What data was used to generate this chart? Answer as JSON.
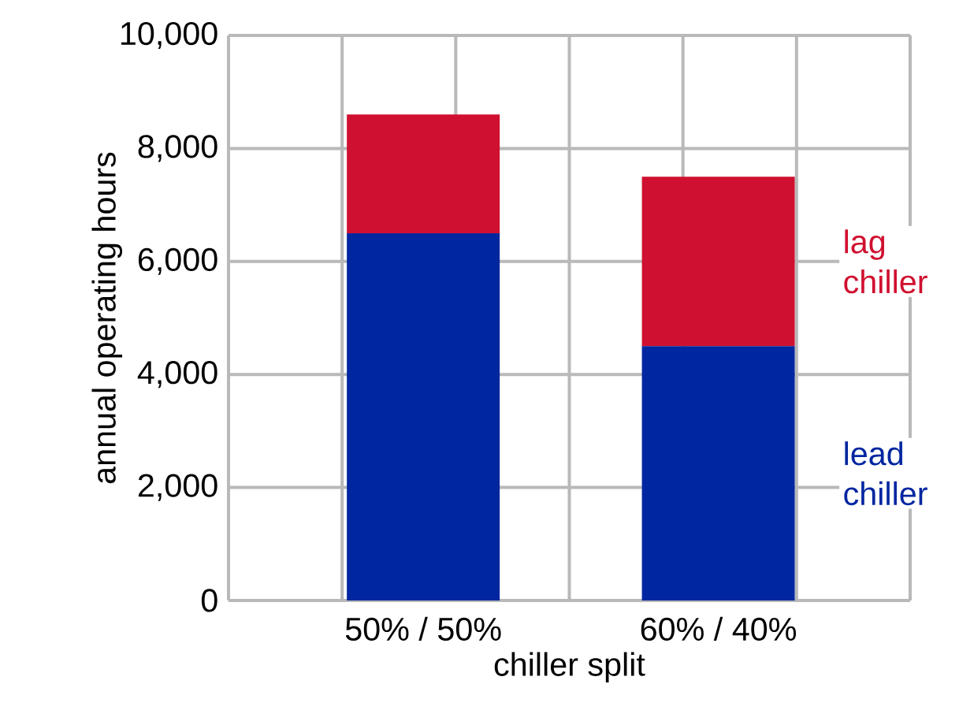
{
  "chart_data": {
    "type": "bar",
    "stacked": true,
    "xlabel": "chiller split",
    "ylabel": "annual operating hours",
    "categories": [
      "50% / 50%",
      "60% / 40%"
    ],
    "series": [
      {
        "name": "lead chiller",
        "color": "#0026a0",
        "values": [
          6500,
          4500
        ]
      },
      {
        "name": "lag chiller",
        "color": "#d01030",
        "values": [
          2100,
          3000
        ]
      }
    ],
    "ylim": [
      0,
      10000
    ],
    "yticks": [
      {
        "value": 0,
        "label": "0"
      },
      {
        "value": 2000,
        "label": "2,000"
      },
      {
        "value": 4000,
        "label": "4,000"
      },
      {
        "value": 6000,
        "label": "6,000"
      },
      {
        "value": 8000,
        "label": "8,000"
      },
      {
        "value": 10000,
        "label": "10,000"
      }
    ],
    "grid": true
  }
}
